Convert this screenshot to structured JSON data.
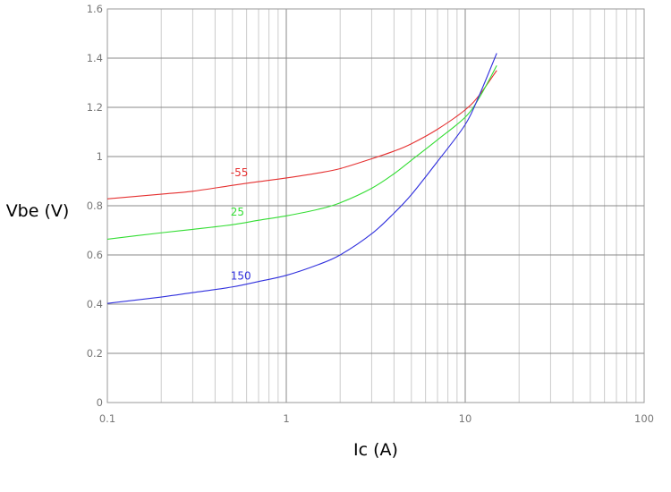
{
  "chart_data": {
    "type": "line",
    "xlabel": "Ic (A)",
    "ylabel": "Vbe (V)",
    "x_scale": "log",
    "xlim": [
      0.1,
      100
    ],
    "ylim": [
      0,
      1.6
    ],
    "grid": true,
    "x_ticks": [
      {
        "value": 0.1,
        "label": "0.1"
      },
      {
        "value": 1,
        "label": "1"
      },
      {
        "value": 10,
        "label": "10"
      },
      {
        "value": 100,
        "label": "100"
      }
    ],
    "y_ticks": [
      {
        "value": 0,
        "label": "0"
      },
      {
        "value": 0.2,
        "label": "0.2"
      },
      {
        "value": 0.4,
        "label": "0.4"
      },
      {
        "value": 0.6,
        "label": "0.6"
      },
      {
        "value": 0.8,
        "label": "0.8"
      },
      {
        "value": 1.0,
        "label": "1"
      },
      {
        "value": 1.2,
        "label": "1.2"
      },
      {
        "value": 1.4,
        "label": "1.4"
      },
      {
        "value": 1.6,
        "label": "1.6"
      }
    ],
    "series": [
      {
        "name": "-55",
        "color": "#e53030",
        "label_at": [
          0.5,
          0.92
        ],
        "points": [
          [
            0.1,
            0.828
          ],
          [
            0.2,
            0.847
          ],
          [
            0.3,
            0.859
          ],
          [
            0.5,
            0.883
          ],
          [
            0.7,
            0.898
          ],
          [
            1,
            0.913
          ],
          [
            1.5,
            0.933
          ],
          [
            2,
            0.951
          ],
          [
            3,
            0.991
          ],
          [
            4,
            1.022
          ],
          [
            5,
            1.052
          ],
          [
            7,
            1.111
          ],
          [
            10,
            1.19
          ],
          [
            12,
            1.25
          ],
          [
            15,
            1.35
          ]
        ]
      },
      {
        "name": "25",
        "color": "#33dd33",
        "label_at": [
          0.5,
          0.76
        ],
        "points": [
          [
            0.1,
            0.664
          ],
          [
            0.2,
            0.69
          ],
          [
            0.3,
            0.704
          ],
          [
            0.5,
            0.723
          ],
          [
            0.7,
            0.741
          ],
          [
            1,
            0.759
          ],
          [
            1.5,
            0.785
          ],
          [
            2,
            0.812
          ],
          [
            3,
            0.871
          ],
          [
            4,
            0.93
          ],
          [
            5,
            0.985
          ],
          [
            7,
            1.068
          ],
          [
            10,
            1.16
          ],
          [
            12,
            1.24
          ],
          [
            15,
            1.37
          ]
        ]
      },
      {
        "name": "150",
        "color": "#3030dd",
        "label_at": [
          0.5,
          0.5
        ],
        "points": [
          [
            0.1,
            0.403
          ],
          [
            0.2,
            0.429
          ],
          [
            0.3,
            0.447
          ],
          [
            0.5,
            0.47
          ],
          [
            0.7,
            0.492
          ],
          [
            1,
            0.517
          ],
          [
            1.5,
            0.56
          ],
          [
            2,
            0.6
          ],
          [
            3,
            0.686
          ],
          [
            4,
            0.77
          ],
          [
            5,
            0.845
          ],
          [
            7,
            0.98
          ],
          [
            10,
            1.13
          ],
          [
            12,
            1.25
          ],
          [
            15,
            1.42
          ]
        ]
      }
    ]
  }
}
